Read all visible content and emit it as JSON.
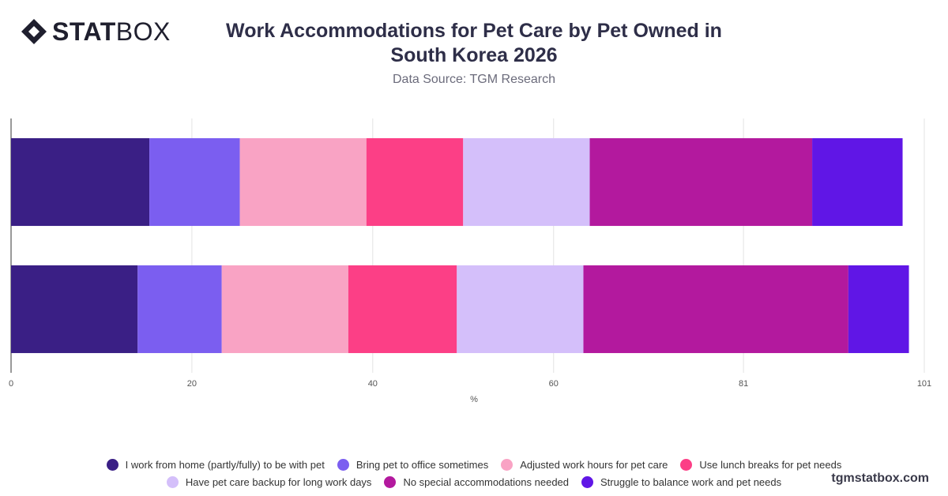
{
  "brand": {
    "bold": "STAT",
    "light": "BOX"
  },
  "title": "Work Accommodations for Pet Care by Pet Owned in South Korea 2026",
  "subtitle": "Data Source: TGM Research",
  "watermark": "tgmstatbox.com",
  "chart_data": {
    "type": "bar",
    "orientation": "horizontal",
    "stacked": true,
    "categories": [
      "",
      ""
    ],
    "xlabel": "%",
    "ylabel": "",
    "xlim": [
      0,
      101
    ],
    "xticks": [
      0,
      20,
      40,
      60,
      81,
      101
    ],
    "grid": true,
    "legend": "bottom",
    "series": [
      {
        "name": "I work from home (partly/fully) to be with pet",
        "color": "#3a1f85",
        "values": [
          15.3,
          14.0
        ]
      },
      {
        "name": "Bring pet to office sometimes",
        "color": "#7b5ef0",
        "values": [
          10.0,
          9.3
        ]
      },
      {
        "name": "Adjusted work hours for pet care",
        "color": "#f9a3c4",
        "values": [
          14.0,
          14.0
        ]
      },
      {
        "name": "Use lunch breaks for pet needs",
        "color": "#fc3f86",
        "values": [
          10.7,
          12.0
        ]
      },
      {
        "name": "Have pet care backup for long work days",
        "color": "#d4bffa",
        "values": [
          14.0,
          14.0
        ]
      },
      {
        "name": "No special accommodations needed",
        "color": "#b3199e",
        "values": [
          24.6,
          29.3
        ]
      },
      {
        "name": "Struggle to balance work and pet needs",
        "color": "#6016e6",
        "values": [
          10.0,
          6.7
        ]
      }
    ]
  }
}
